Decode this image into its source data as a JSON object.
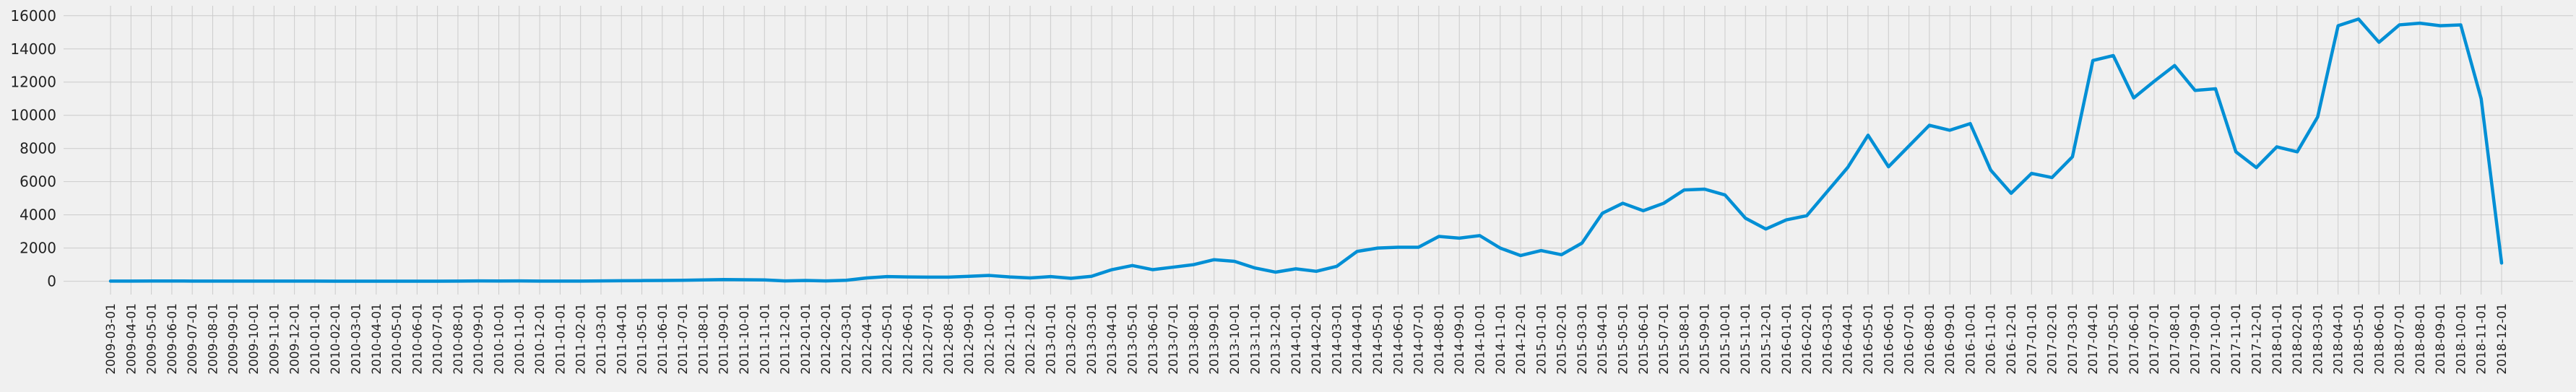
{
  "chart_data": {
    "type": "line",
    "title": "",
    "xlabel": "",
    "ylabel": "",
    "ylim": [
      -800,
      16600
    ],
    "yticks": [
      0,
      2000,
      4000,
      6000,
      8000,
      10000,
      12000,
      14000,
      16000
    ],
    "grid": true,
    "line_color": "#008fd5",
    "background": "#f0f0f0",
    "categories": [
      "2009-03-01",
      "2009-04-01",
      "2009-05-01",
      "2009-06-01",
      "2009-07-01",
      "2009-08-01",
      "2009-09-01",
      "2009-10-01",
      "2009-11-01",
      "2009-12-01",
      "2010-01-01",
      "2010-02-01",
      "2010-03-01",
      "2010-04-01",
      "2010-05-01",
      "2010-06-01",
      "2010-07-01",
      "2010-08-01",
      "2010-09-01",
      "2010-10-01",
      "2010-11-01",
      "2010-12-01",
      "2011-01-01",
      "2011-02-01",
      "2011-03-01",
      "2011-04-01",
      "2011-05-01",
      "2011-06-01",
      "2011-07-01",
      "2011-08-01",
      "2011-09-01",
      "2011-10-01",
      "2011-11-01",
      "2011-12-01",
      "2012-01-01",
      "2012-02-01",
      "2012-03-01",
      "2012-04-01",
      "2012-05-01",
      "2012-06-01",
      "2012-07-01",
      "2012-08-01",
      "2012-09-01",
      "2012-10-01",
      "2012-11-01",
      "2012-12-01",
      "2013-01-01",
      "2013-02-01",
      "2013-03-01",
      "2013-04-01",
      "2013-05-01",
      "2013-06-01",
      "2013-07-01",
      "2013-08-01",
      "2013-09-01",
      "2013-10-01",
      "2013-11-01",
      "2013-12-01",
      "2014-01-01",
      "2014-02-01",
      "2014-03-01",
      "2014-04-01",
      "2014-05-01",
      "2014-06-01",
      "2014-07-01",
      "2014-08-01",
      "2014-09-01",
      "2014-10-01",
      "2014-11-01",
      "2014-12-01",
      "2015-01-01",
      "2015-02-01",
      "2015-03-01",
      "2015-04-01",
      "2015-05-01",
      "2015-06-01",
      "2015-07-01",
      "2015-08-01",
      "2015-09-01",
      "2015-10-01",
      "2015-11-01",
      "2015-12-01",
      "2016-01-01",
      "2016-02-01",
      "2016-03-01",
      "2016-04-01",
      "2016-05-01",
      "2016-06-01",
      "2016-07-01",
      "2016-08-01",
      "2016-09-01",
      "2016-10-01",
      "2016-11-01",
      "2016-12-01",
      "2017-01-01",
      "2017-02-01",
      "2017-03-01",
      "2017-04-01",
      "2017-05-01",
      "2017-06-01",
      "2017-07-01",
      "2017-08-01",
      "2017-09-01",
      "2017-10-01",
      "2017-11-01",
      "2017-12-01",
      "2018-01-01",
      "2018-02-01",
      "2018-03-01",
      "2018-04-01",
      "2018-05-01",
      "2018-06-01",
      "2018-07-01",
      "2018-08-01",
      "2018-09-01",
      "2018-10-01",
      "2018-11-01",
      "2018-12-01"
    ],
    "values": [
      10,
      12,
      15,
      15,
      12,
      10,
      10,
      10,
      8,
      8,
      8,
      5,
      5,
      5,
      5,
      5,
      5,
      10,
      20,
      15,
      20,
      10,
      10,
      10,
      20,
      30,
      40,
      50,
      60,
      80,
      100,
      90,
      80,
      20,
      50,
      20,
      60,
      200,
      280,
      260,
      250,
      250,
      300,
      350,
      260,
      200,
      280,
      180,
      300,
      700,
      950,
      700,
      850,
      1000,
      1300,
      1200,
      800,
      550,
      750,
      600,
      900,
      1800,
      2000,
      2050,
      2050,
      2700,
      2600,
      2750,
      2000,
      1550,
      1850,
      1600,
      2300,
      4100,
      4700,
      4250,
      4700,
      5500,
      5550,
      5200,
      3800,
      3150,
      3700,
      3950,
      5400,
      6850,
      8800,
      6900,
      8150,
      9400,
      9100,
      9500,
      6700,
      5300,
      6500,
      6250,
      7500,
      13300,
      13600,
      11050,
      12050,
      13000,
      11500,
      11600,
      7800,
      6850,
      8100,
      7800,
      9900,
      15400,
      15800,
      14400,
      15450,
      15550,
      15400,
      15450,
      11000,
      1100
    ]
  }
}
